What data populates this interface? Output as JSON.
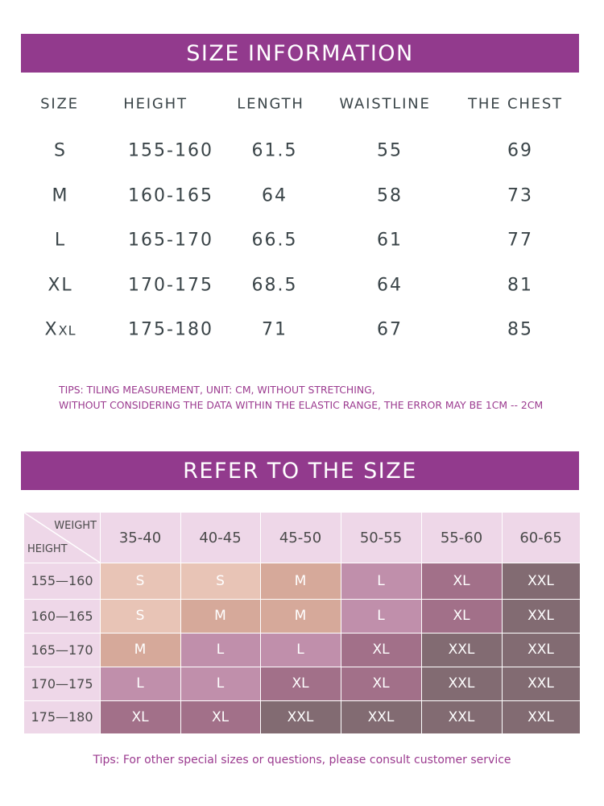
{
  "size_info": {
    "title": "SIZE INFORMATION",
    "headers": [
      "SIZE",
      "HEIGHT",
      "LENGTH",
      "WAISTLINE",
      "THE CHEST"
    ],
    "rows": [
      {
        "size": "S",
        "height": "155-160",
        "length": "61.5",
        "waist": "55",
        "chest": "69"
      },
      {
        "size": "M",
        "height": "160-165",
        "length": "64",
        "waist": "58",
        "chest": "73"
      },
      {
        "size": "L",
        "height": "165-170",
        "length": "66.5",
        "waist": "61",
        "chest": "77"
      },
      {
        "size": "XL",
        "height": "170-175",
        "length": "68.5",
        "waist": "64",
        "chest": "81"
      },
      {
        "size": "XXL",
        "height": "175-180",
        "length": "71",
        "waist": "67",
        "chest": "85"
      }
    ],
    "tips_line1": "TIPS: TILING MEASUREMENT, UNIT: CM, WITHOUT STRETCHING,",
    "tips_line2": "WITHOUT CONSIDERING THE DATA WITHIN THE ELASTIC RANGE, THE ERROR MAY BE 1CM -- 2CM"
  },
  "refer": {
    "title": "REFER TO THE SIZE",
    "corner_weight": "WEIGHT",
    "corner_height": "HEIGHT",
    "weights": [
      "35-40",
      "40-45",
      "45-50",
      "50-55",
      "55-60",
      "60-65"
    ],
    "heights": [
      "155—160",
      "160—165",
      "165—170",
      "170—175",
      "175—180"
    ],
    "cells": [
      [
        "S",
        "S",
        "M",
        "L",
        "XL",
        "XXL"
      ],
      [
        "S",
        "M",
        "M",
        "L",
        "XL",
        "XXL"
      ],
      [
        "M",
        "L",
        "L",
        "XL",
        "XXL",
        "XXL"
      ],
      [
        "L",
        "L",
        "XL",
        "XL",
        "XXL",
        "XXL"
      ],
      [
        "XL",
        "XL",
        "XXL",
        "XXL",
        "XXL",
        "XXL"
      ]
    ],
    "colors": {
      "S": "#e8c4b6",
      "M": "#d6a99a",
      "L": "#c08fab",
      "XL": "#a27089",
      "XXL": "#826b72",
      "header_bg": "#eed7e8"
    },
    "tips": "Tips: For other special sizes or questions, please consult customer service"
  }
}
